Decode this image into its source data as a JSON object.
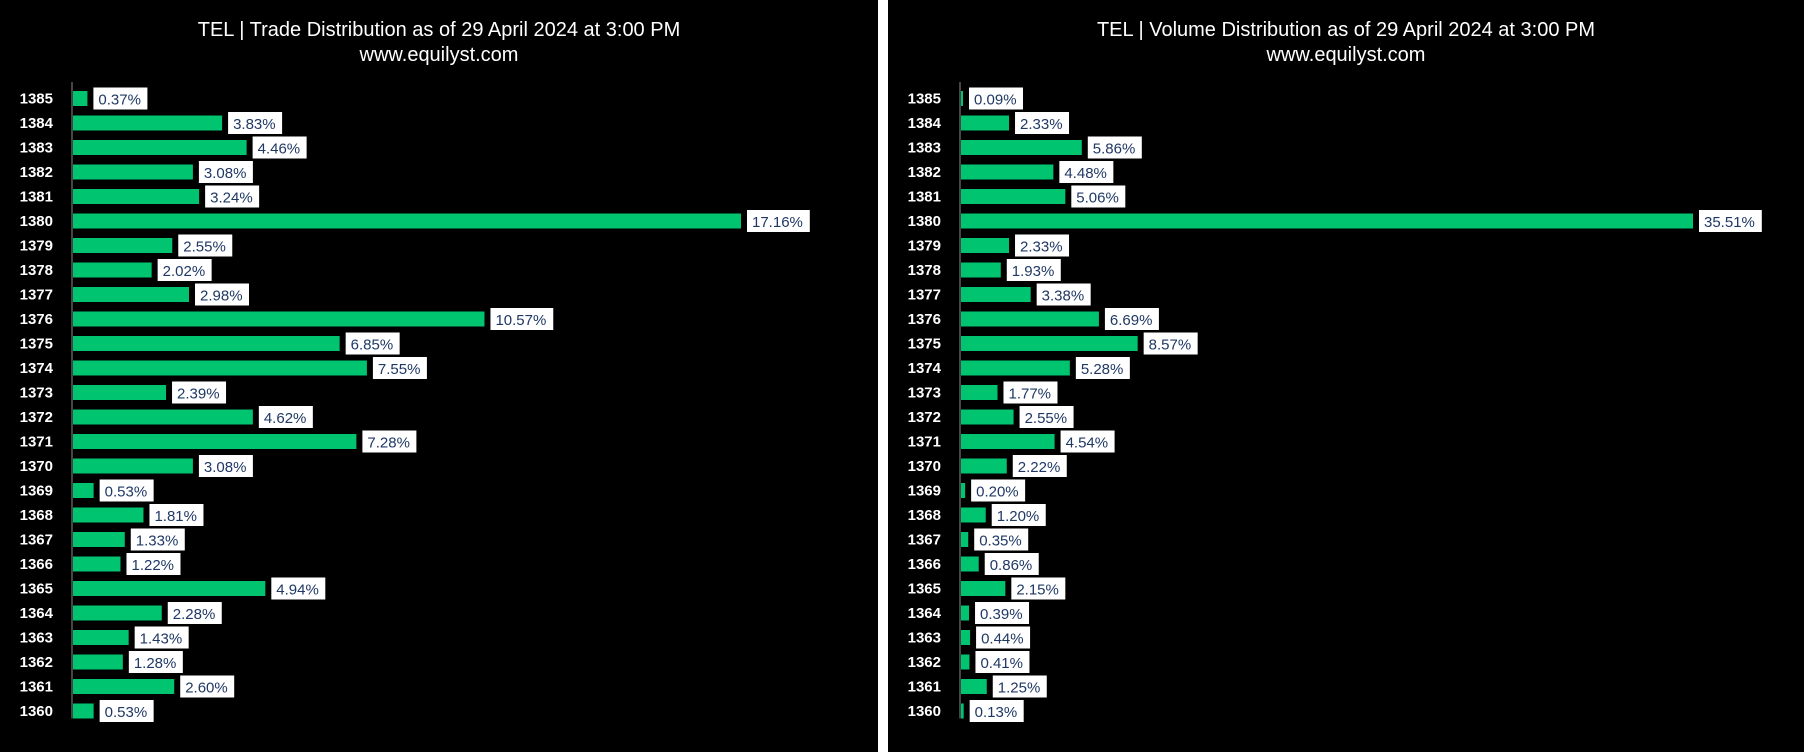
{
  "chart_data": [
    {
      "type": "bar",
      "orientation": "horizontal",
      "title": "TEL | Trade Distribution as of 29 April 2024 at 3:00 PM",
      "subtitle": "www.equilyst.com",
      "categories": [
        "1385",
        "1384",
        "1383",
        "1382",
        "1381",
        "1380",
        "1379",
        "1378",
        "1377",
        "1376",
        "1375",
        "1374",
        "1373",
        "1372",
        "1371",
        "1370",
        "1369",
        "1368",
        "1367",
        "1366",
        "1365",
        "1364",
        "1363",
        "1362",
        "1361",
        "1360"
      ],
      "values": [
        0.37,
        3.83,
        4.46,
        3.08,
        3.24,
        17.16,
        2.55,
        2.02,
        2.98,
        10.57,
        6.85,
        7.55,
        2.39,
        4.62,
        7.28,
        3.08,
        0.53,
        1.81,
        1.33,
        1.22,
        4.94,
        2.28,
        1.43,
        1.28,
        2.6,
        0.53
      ],
      "labels": [
        "0.37%",
        "3.83%",
        "4.46%",
        "3.08%",
        "3.24%",
        "17.16%",
        "2.55%",
        "2.02%",
        "2.98%",
        "10.57%",
        "6.85%",
        "7.55%",
        "2.39%",
        "4.62%",
        "7.28%",
        "3.08%",
        "0.53%",
        "1.81%",
        "1.33%",
        "1.22%",
        "4.94%",
        "2.28%",
        "1.43%",
        "1.28%",
        "2.60%",
        "0.53%"
      ],
      "xlim": [
        0,
        17.16
      ],
      "bar_color": "#00c470",
      "background": "#000000",
      "grid": false
    },
    {
      "type": "bar",
      "orientation": "horizontal",
      "title": "TEL | Volume Distribution as of 29 April 2024 at 3:00 PM",
      "subtitle": "www.equilyst.com",
      "categories": [
        "1385",
        "1384",
        "1383",
        "1382",
        "1381",
        "1380",
        "1379",
        "1378",
        "1377",
        "1376",
        "1375",
        "1374",
        "1373",
        "1372",
        "1371",
        "1370",
        "1369",
        "1368",
        "1367",
        "1366",
        "1365",
        "1364",
        "1363",
        "1362",
        "1361",
        "1360"
      ],
      "values": [
        0.09,
        2.33,
        5.86,
        4.48,
        5.06,
        35.51,
        2.33,
        1.93,
        3.38,
        6.69,
        8.57,
        5.28,
        1.77,
        2.55,
        4.54,
        2.22,
        0.2,
        1.2,
        0.35,
        0.86,
        2.15,
        0.39,
        0.44,
        0.41,
        1.25,
        0.13
      ],
      "labels": [
        "0.09%",
        "2.33%",
        "5.86%",
        "4.48%",
        "5.06%",
        "35.51%",
        "2.33%",
        "1.93%",
        "3.38%",
        "6.69%",
        "8.57%",
        "5.28%",
        "1.77%",
        "2.55%",
        "4.54%",
        "2.22%",
        "0.20%",
        "1.20%",
        "0.35%",
        "0.86%",
        "2.15%",
        "0.39%",
        "0.44%",
        "0.41%",
        "1.25%",
        "0.13%"
      ],
      "xlim": [
        0,
        35.51
      ],
      "bar_color": "#00c470",
      "background": "#000000",
      "grid": false
    }
  ]
}
